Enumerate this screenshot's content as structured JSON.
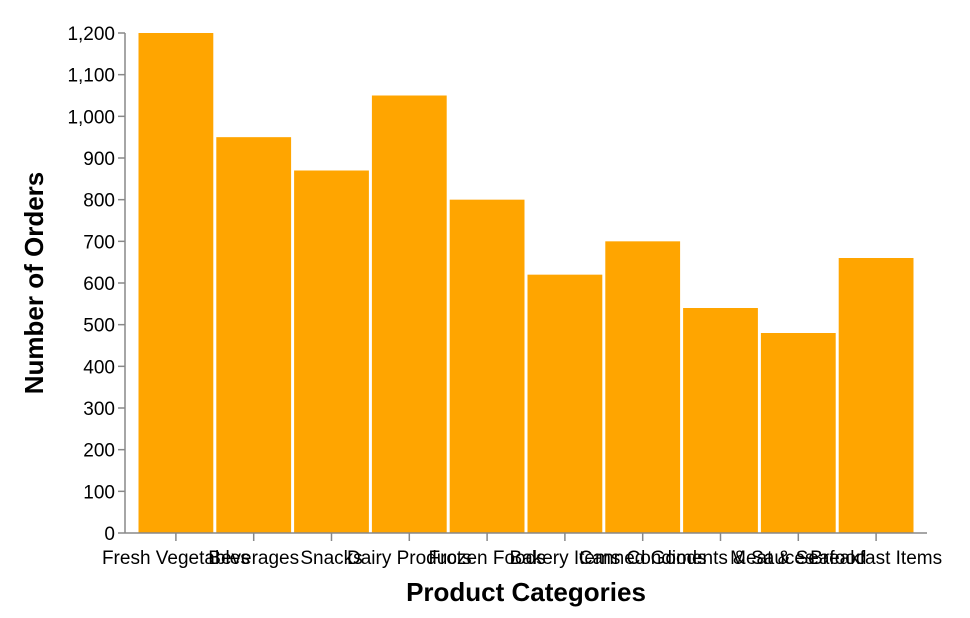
{
  "chart_data": {
    "type": "bar",
    "title": "",
    "xlabel": "Product Categories",
    "ylabel": "Number of Orders",
    "ylim": [
      0,
      1200
    ],
    "yticks": [
      0,
      100,
      200,
      300,
      400,
      500,
      600,
      700,
      800,
      900,
      1000,
      1100,
      1200
    ],
    "ytick_labels": [
      "0",
      "100",
      "200",
      "300",
      "400",
      "500",
      "600",
      "700",
      "800",
      "900",
      "1,000",
      "1,100",
      "1,200"
    ],
    "categories": [
      "Fresh Vegetables",
      "Beverages",
      "Snacks",
      "Dairy Products",
      "Frozen Foods",
      "Bakery Items",
      "Canned Goods",
      "Condiments & Sauces",
      "Meat & Seafood",
      "Breakfast Items"
    ],
    "values": [
      1200,
      950,
      870,
      1050,
      800,
      620,
      700,
      540,
      480,
      660
    ],
    "bar_color": "#FFA500",
    "grid": false
  }
}
